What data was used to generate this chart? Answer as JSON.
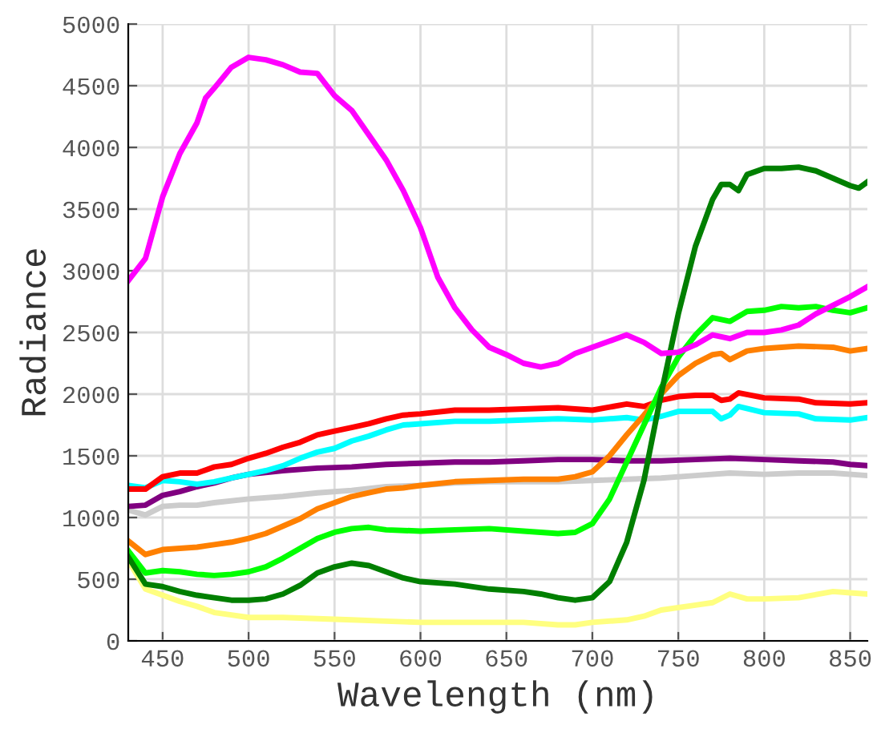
{
  "chart_data": {
    "type": "line",
    "xlabel": "Wavelength (nm)",
    "ylabel": "Radiance",
    "xlim": [
      430,
      860
    ],
    "ylim": [
      0,
      5000
    ],
    "xticks": [
      450,
      500,
      550,
      600,
      650,
      700,
      750,
      800,
      850
    ],
    "yticks": [
      0,
      500,
      1000,
      1500,
      2000,
      2500,
      3000,
      3500,
      4000,
      4500,
      5000
    ],
    "grid": true,
    "legend": false,
    "series": [
      {
        "color": "#ffff80",
        "x": [
          430,
          440,
          450,
          460,
          470,
          480,
          490,
          500,
          520,
          540,
          560,
          580,
          600,
          620,
          640,
          660,
          680,
          690,
          700,
          720,
          730,
          740,
          760,
          770,
          780,
          790,
          800,
          820,
          840,
          850,
          860
        ],
        "values": [
          650,
          420,
          370,
          320,
          280,
          230,
          210,
          190,
          190,
          180,
          170,
          160,
          150,
          150,
          150,
          150,
          130,
          130,
          150,
          170,
          200,
          250,
          290,
          310,
          380,
          340,
          340,
          350,
          400,
          390,
          380
        ]
      },
      {
        "color": "#cccccc",
        "x": [
          430,
          440,
          450,
          460,
          470,
          480,
          500,
          520,
          540,
          560,
          580,
          600,
          620,
          640,
          660,
          680,
          700,
          720,
          740,
          760,
          780,
          800,
          820,
          840,
          860
        ],
        "values": [
          1060,
          1020,
          1090,
          1100,
          1100,
          1120,
          1150,
          1170,
          1200,
          1220,
          1250,
          1260,
          1280,
          1290,
          1290,
          1290,
          1300,
          1310,
          1320,
          1340,
          1360,
          1350,
          1360,
          1360,
          1340
        ]
      },
      {
        "color": "#800080",
        "x": [
          430,
          440,
          450,
          460,
          470,
          480,
          490,
          500,
          520,
          540,
          560,
          580,
          600,
          620,
          640,
          660,
          680,
          700,
          720,
          740,
          760,
          780,
          800,
          820,
          840,
          850,
          860
        ],
        "values": [
          1090,
          1100,
          1180,
          1210,
          1250,
          1280,
          1320,
          1350,
          1380,
          1400,
          1410,
          1430,
          1440,
          1450,
          1450,
          1460,
          1470,
          1470,
          1460,
          1460,
          1470,
          1480,
          1470,
          1460,
          1450,
          1430,
          1420
        ]
      },
      {
        "color": "#00ffff",
        "x": [
          430,
          440,
          450,
          460,
          470,
          480,
          490,
          500,
          510,
          520,
          530,
          540,
          550,
          560,
          570,
          580,
          590,
          600,
          620,
          640,
          660,
          680,
          700,
          720,
          730,
          740,
          750,
          770,
          775,
          780,
          785,
          800,
          820,
          830,
          850,
          860
        ],
        "values": [
          1260,
          1240,
          1300,
          1290,
          1270,
          1290,
          1320,
          1350,
          1380,
          1420,
          1480,
          1530,
          1560,
          1620,
          1660,
          1710,
          1750,
          1760,
          1780,
          1780,
          1790,
          1800,
          1790,
          1810,
          1790,
          1820,
          1860,
          1860,
          1800,
          1830,
          1900,
          1850,
          1840,
          1800,
          1790,
          1810
        ]
      },
      {
        "color": "#ff0000",
        "x": [
          430,
          440,
          450,
          460,
          470,
          480,
          490,
          500,
          510,
          520,
          530,
          540,
          550,
          560,
          570,
          580,
          590,
          600,
          620,
          640,
          660,
          680,
          700,
          720,
          730,
          740,
          750,
          760,
          770,
          775,
          780,
          785,
          800,
          820,
          830,
          850,
          860
        ],
        "values": [
          1230,
          1230,
          1330,
          1360,
          1360,
          1410,
          1430,
          1480,
          1520,
          1570,
          1610,
          1670,
          1700,
          1730,
          1760,
          1800,
          1830,
          1840,
          1870,
          1870,
          1880,
          1890,
          1870,
          1920,
          1900,
          1950,
          1980,
          1990,
          1990,
          1950,
          1960,
          2010,
          1970,
          1960,
          1930,
          1920,
          1930
        ]
      },
      {
        "color": "#ff8000",
        "x": [
          430,
          440,
          450,
          460,
          470,
          480,
          490,
          500,
          510,
          520,
          530,
          540,
          550,
          560,
          570,
          580,
          590,
          600,
          620,
          640,
          660,
          680,
          690,
          700,
          710,
          720,
          730,
          740,
          750,
          760,
          770,
          775,
          780,
          790,
          800,
          820,
          840,
          850,
          860
        ],
        "values": [
          810,
          700,
          740,
          750,
          760,
          780,
          800,
          830,
          870,
          930,
          990,
          1070,
          1120,
          1170,
          1200,
          1230,
          1240,
          1260,
          1290,
          1300,
          1310,
          1310,
          1330,
          1370,
          1500,
          1670,
          1830,
          2000,
          2150,
          2250,
          2320,
          2330,
          2280,
          2350,
          2370,
          2390,
          2380,
          2350,
          2370
        ]
      },
      {
        "color": "#00ff00",
        "x": [
          430,
          440,
          450,
          460,
          470,
          480,
          490,
          500,
          510,
          520,
          530,
          540,
          550,
          560,
          570,
          580,
          600,
          620,
          640,
          660,
          680,
          690,
          700,
          710,
          720,
          730,
          740,
          750,
          760,
          770,
          780,
          790,
          800,
          810,
          820,
          830,
          840,
          850,
          860
        ],
        "values": [
          730,
          550,
          570,
          560,
          540,
          530,
          540,
          560,
          600,
          670,
          750,
          830,
          880,
          910,
          920,
          900,
          890,
          900,
          910,
          890,
          870,
          880,
          950,
          1150,
          1450,
          1750,
          2050,
          2300,
          2480,
          2620,
          2590,
          2670,
          2680,
          2710,
          2700,
          2710,
          2680,
          2660,
          2700
        ]
      },
      {
        "color": "#007f00",
        "x": [
          430,
          440,
          450,
          460,
          470,
          480,
          490,
          500,
          510,
          520,
          530,
          540,
          550,
          560,
          570,
          580,
          590,
          600,
          620,
          640,
          660,
          670,
          680,
          690,
          700,
          710,
          720,
          730,
          740,
          750,
          760,
          770,
          775,
          780,
          785,
          790,
          800,
          810,
          820,
          830,
          840,
          850,
          855,
          860
        ],
        "values": [
          680,
          460,
          440,
          400,
          370,
          350,
          330,
          330,
          340,
          380,
          450,
          550,
          600,
          630,
          610,
          560,
          510,
          480,
          460,
          420,
          400,
          380,
          350,
          330,
          350,
          480,
          800,
          1300,
          2000,
          2650,
          3200,
          3580,
          3700,
          3700,
          3650,
          3780,
          3830,
          3830,
          3840,
          3810,
          3750,
          3690,
          3670,
          3720
        ]
      },
      {
        "color": "#ff00ff",
        "x": [
          430,
          440,
          450,
          460,
          470,
          475,
          480,
          490,
          500,
          510,
          520,
          530,
          540,
          550,
          560,
          570,
          580,
          590,
          600,
          610,
          620,
          630,
          640,
          650,
          660,
          670,
          680,
          690,
          700,
          710,
          720,
          730,
          740,
          750,
          760,
          770,
          780,
          790,
          800,
          810,
          820,
          830,
          840,
          850,
          860
        ],
        "values": [
          2920,
          3100,
          3600,
          3950,
          4200,
          4400,
          4480,
          4650,
          4730,
          4710,
          4670,
          4610,
          4600,
          4420,
          4300,
          4100,
          3900,
          3650,
          3350,
          2950,
          2700,
          2520,
          2380,
          2320,
          2250,
          2220,
          2250,
          2330,
          2380,
          2430,
          2480,
          2420,
          2330,
          2340,
          2400,
          2480,
          2450,
          2500,
          2500,
          2520,
          2560,
          2650,
          2720,
          2790,
          2870
        ]
      }
    ]
  }
}
